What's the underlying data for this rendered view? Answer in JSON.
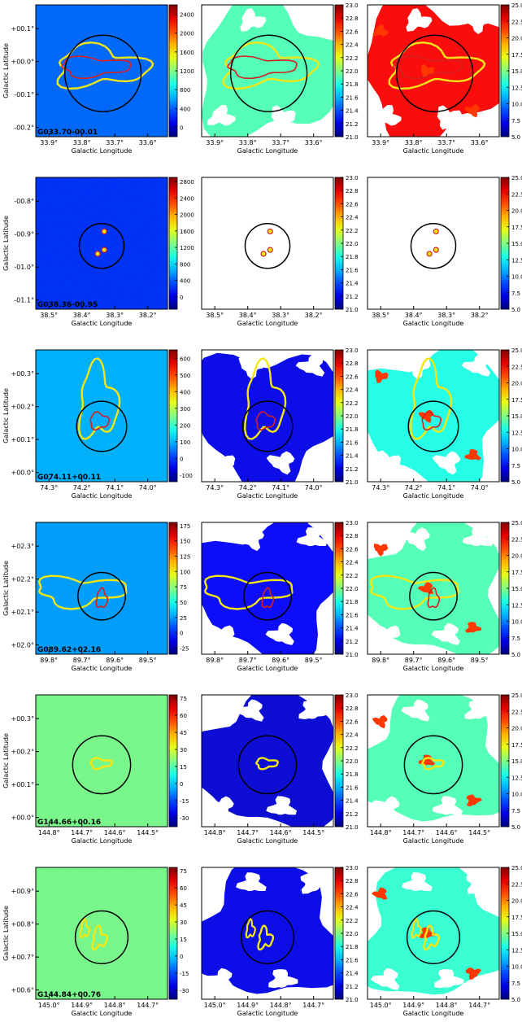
{
  "figure": {
    "xlabel": "Galactic Longitude",
    "ylabel": "Galactic Latitude",
    "colorbars": {
      "col2": {
        "ticks": [
          "21.0",
          "21.2",
          "21.4",
          "21.6",
          "21.8",
          "22.0",
          "22.2",
          "22.4",
          "22.6",
          "22.8",
          "23.0"
        ],
        "range": [
          21.0,
          23.0
        ]
      },
      "col3": {
        "ticks": [
          "5.0",
          "7.5",
          "10.0",
          "12.5",
          "15.0",
          "17.5",
          "20.0",
          "22.5",
          "25.0"
        ],
        "range": [
          5.0,
          25.0
        ]
      }
    },
    "colors": {
      "contour_outer": "#f2e614",
      "contour_inner": "#d42020",
      "circle": "#000000",
      "cmap": "jet"
    }
  },
  "chart_data": [
    {
      "type": "heatmap",
      "source_label": "G033.70-00.01",
      "xticks": [
        "33.9°",
        "33.8°",
        "33.7°",
        "33.6°"
      ],
      "yticks": [
        "+00.1°",
        "+00.0°",
        "-00.1°",
        "-00.2°"
      ],
      "col1_cbar_ticks": [
        "0",
        "400",
        "800",
        "1200",
        "1600",
        "2000",
        "2400"
      ],
      "col1_range": [
        -200,
        2600
      ],
      "bg": {
        "c1": 0.22,
        "c2": 0.45,
        "c3": 0.88
      }
    },
    {
      "type": "heatmap",
      "source_label": "G038.36-00.95",
      "xticks": [
        "38.5°",
        "38.4°",
        "38.3°",
        "38.2°"
      ],
      "yticks": [
        "-00.8°",
        "-00.9°",
        "-01.0°",
        "-01.1°"
      ],
      "col1_cbar_ticks": [
        "0",
        "400",
        "800",
        "1200",
        "1600",
        "2000",
        "2400",
        "2800"
      ],
      "col1_range": [
        -300,
        2900
      ],
      "bg": {
        "c1": 0.12,
        "c2": null,
        "c3": null
      }
    },
    {
      "type": "heatmap",
      "source_label": "G074.11+00.11",
      "xticks": [
        "74.3°",
        "74.2°",
        "74.1°",
        "74.0°"
      ],
      "yticks": [
        "+00.3°",
        "+00.2°",
        "+00.1°",
        "+00.0°"
      ],
      "col1_cbar_ticks": [
        "-100",
        "0",
        "100",
        "200",
        "300",
        "400",
        "500",
        "600"
      ],
      "col1_range": [
        -140,
        650
      ],
      "bg": {
        "c1": 0.3,
        "c2": 0.1,
        "c3": 0.4
      }
    },
    {
      "type": "heatmap",
      "source_label": "G089.62+02.16",
      "xticks": [
        "89.8°",
        "89.7°",
        "89.6°",
        "89.5°"
      ],
      "yticks": [
        "+02.3°",
        "+02.2°",
        "+02.1°",
        "+02.0°"
      ],
      "col1_cbar_ticks": [
        "-25",
        "0",
        "25",
        "50",
        "75",
        "100",
        "125",
        "150",
        "175"
      ],
      "col1_range": [
        -35,
        180
      ],
      "bg": {
        "c1": 0.28,
        "c2": 0.12,
        "c3": 0.45
      }
    },
    {
      "type": "heatmap",
      "source_label": "G144.66+00.16",
      "xticks": [
        "144.8°",
        "144.7°",
        "144.6°",
        "144.5°"
      ],
      "yticks": [
        "+00.3°",
        "+00.2°",
        "+00.1°",
        "+00.0°"
      ],
      "col1_cbar_ticks": [
        "-30",
        "-15",
        "0",
        "15",
        "30",
        "45",
        "60",
        "75"
      ],
      "col1_range": [
        -38,
        78
      ],
      "bg": {
        "c1": 0.5,
        "c2": 0.08,
        "c3": 0.45
      }
    },
    {
      "type": "heatmap",
      "source_label": "G144.84+00.76",
      "xticks": [
        "145.0°",
        "144.9°",
        "144.8°",
        "144.7°"
      ],
      "yticks": [
        "+00.9°",
        "+00.8°",
        "+00.7°",
        "+00.6°"
      ],
      "col1_cbar_ticks": [
        "-30",
        "-15",
        "0",
        "15",
        "30",
        "45",
        "60",
        "75"
      ],
      "col1_range": [
        -38,
        78
      ],
      "bg": {
        "c1": 0.5,
        "c2": 0.1,
        "c3": 0.42
      }
    }
  ]
}
